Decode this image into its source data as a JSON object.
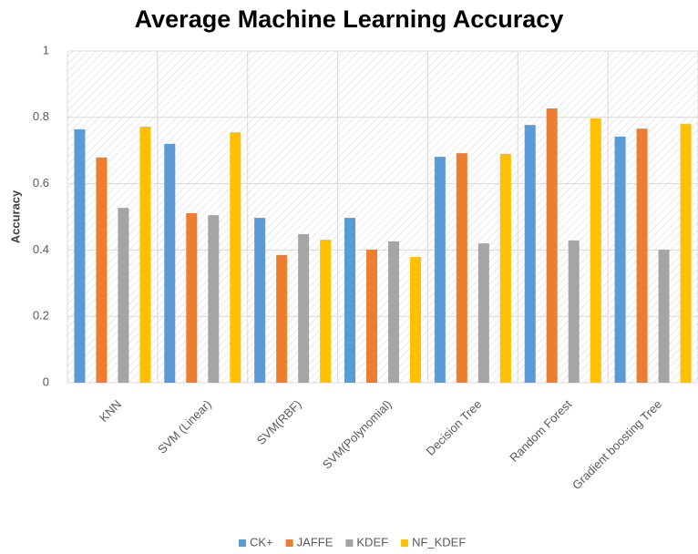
{
  "chart_data": {
    "type": "bar",
    "title": "Average Machine Learning Accuracy",
    "y_label": "Accuracy",
    "categories": [
      "KNN",
      "SVM (Linear)",
      "SVM(RBF)",
      "SVM(Polynomial)",
      "Decision Tree",
      "Random Forest",
      "Gradient boosting Tree"
    ],
    "series": [
      {
        "name": "CK+",
        "color": "#5b9bd5",
        "values": [
          0.764,
          0.72,
          0.497,
          0.497,
          0.681,
          0.777,
          0.742
        ]
      },
      {
        "name": "JAFFE",
        "color": "#ed7d31",
        "values": [
          0.679,
          0.511,
          0.385,
          0.401,
          0.692,
          0.827,
          0.766
        ]
      },
      {
        "name": "KDEF",
        "color": "#a5a5a5",
        "values": [
          0.527,
          0.505,
          0.448,
          0.426,
          0.42,
          0.429,
          0.401
        ]
      },
      {
        "name": "NF_KDEF",
        "color": "#ffc000",
        "values": [
          0.772,
          0.755,
          0.431,
          0.379,
          0.69,
          0.797,
          0.78
        ]
      }
    ],
    "ylim": [
      0,
      1
    ],
    "yticks": [
      0,
      0.2,
      0.4,
      0.6,
      0.8,
      1
    ],
    "grid": true,
    "legend": "bottom"
  }
}
